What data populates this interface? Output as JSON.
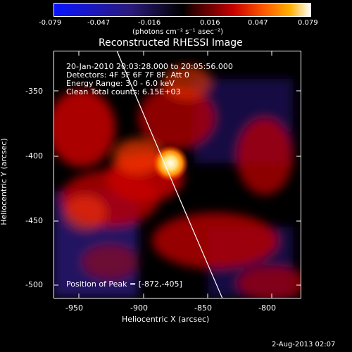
{
  "colorbar": {
    "ticks": [
      "-0.079",
      "-0.047",
      "-0.016",
      "0.016",
      "0.047",
      "0.079"
    ],
    "unit_label": "(photons cm⁻² s⁻¹ asec⁻²)",
    "colors": [
      "#0a14ff",
      "#2a1a7a",
      "#000000",
      "#3a0000",
      "#c80000",
      "#ff5a00",
      "#ffb000",
      "#ffffff"
    ]
  },
  "plot": {
    "title": "Reconstructed RHESSI Image",
    "xlabel": "Heliocentric X (arcsec)",
    "ylabel": "Heliocentric Y (arcsec)",
    "x_ticks": [
      "-950",
      "-900",
      "-850",
      "-800"
    ],
    "y_ticks": [
      "-350",
      "-400",
      "-450",
      "-500"
    ],
    "info_lines": [
      "20-Jan-2010 20:03:28.000 to 20:05:56.000",
      "Detectors: 4F 5F 6F 7F 8F, Att 0",
      "Energy Range: 3.0 - 6.0 keV",
      "Clean     Total counts: 6.15E+03"
    ],
    "peak_label": "Position of Peak = [-872,-405]"
  },
  "footer": {
    "date": "2-Aug-2013 02:07"
  }
}
